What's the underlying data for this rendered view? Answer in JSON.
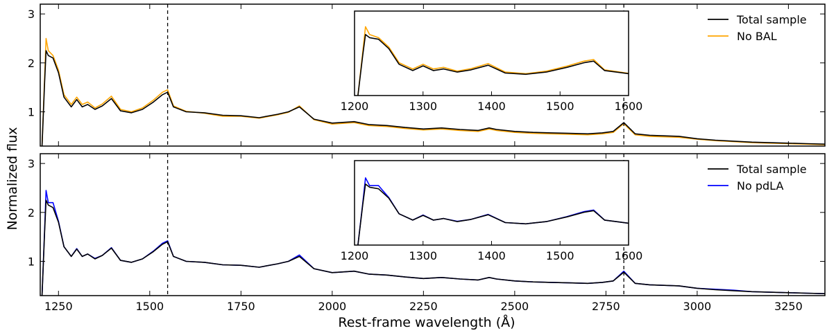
{
  "chart_data": {
    "type": "line",
    "xlabel": "Rest-frame wavelength (Å)",
    "ylabel": "Normalized flux",
    "xlim": [
      1200,
      3350
    ],
    "ylim": [
      0.3,
      3.2
    ],
    "xticks": [
      1250,
      1500,
      1750,
      2000,
      2250,
      2500,
      2750,
      3000,
      3250
    ],
    "yticks": [
      1,
      2,
      3
    ],
    "vlines": [
      1549,
      2799
    ],
    "inset": {
      "xlim": [
        1200,
        1600
      ],
      "xticks": [
        1200,
        1300,
        1400,
        1500,
        1600
      ]
    },
    "panels": [
      {
        "legend": [
          {
            "name": "Total sample",
            "color": "#000000"
          },
          {
            "name": "No BAL",
            "color": "#ffa500"
          }
        ],
        "series": [
          {
            "name": "Total sample",
            "color": "#000000",
            "x": [
              1205,
              1212,
              1216,
              1222,
              1235,
              1250,
              1265,
              1285,
              1300,
              1315,
              1330,
              1350,
              1370,
              1395,
              1420,
              1450,
              1480,
              1510,
              1535,
              1549,
              1565,
              1600,
              1650,
              1700,
              1750,
              1800,
              1850,
              1880,
              1910,
              1950,
              2000,
              2060,
              2100,
              2150,
              2200,
              2250,
              2300,
              2350,
              2400,
              2430,
              2450,
              2500,
              2550,
              2600,
              2650,
              2700,
              2740,
              2770,
              2799,
              2830,
              2870,
              2950,
              3000,
              3050,
              3100,
              3150,
              3200,
              3250,
              3300,
              3350
            ],
            "y": [
              0.3,
              1.6,
              2.25,
              2.15,
              2.1,
              1.8,
              1.3,
              1.1,
              1.25,
              1.1,
              1.15,
              1.05,
              1.12,
              1.27,
              1.02,
              0.98,
              1.05,
              1.2,
              1.35,
              1.4,
              1.1,
              1.0,
              0.98,
              0.93,
              0.92,
              0.88,
              0.95,
              1.0,
              1.1,
              0.85,
              0.77,
              0.8,
              0.74,
              0.72,
              0.68,
              0.65,
              0.67,
              0.64,
              0.62,
              0.67,
              0.64,
              0.6,
              0.58,
              0.57,
              0.56,
              0.55,
              0.57,
              0.6,
              0.78,
              0.55,
              0.52,
              0.5,
              0.45,
              0.42,
              0.4,
              0.38,
              0.37,
              0.36,
              0.35,
              0.34
            ]
          },
          {
            "name": "No BAL",
            "color": "#ffa500",
            "x": [
              1205,
              1212,
              1216,
              1222,
              1235,
              1250,
              1265,
              1285,
              1300,
              1315,
              1330,
              1350,
              1370,
              1395,
              1420,
              1450,
              1480,
              1510,
              1535,
              1549,
              1565,
              1600,
              1650,
              1700,
              1750,
              1800,
              1850,
              1880,
              1910,
              1950,
              2000,
              2060,
              2100,
              2150,
              2200,
              2250,
              2300,
              2350,
              2400,
              2430,
              2450,
              2500,
              2550,
              2600,
              2650,
              2700,
              2740,
              2770,
              2799,
              2830,
              2870,
              2950,
              3000,
              3050,
              3100,
              3150,
              3200,
              3250,
              3300,
              3350
            ],
            "y": [
              0.3,
              1.7,
              2.5,
              2.25,
              2.15,
              1.85,
              1.35,
              1.15,
              1.3,
              1.15,
              1.2,
              1.08,
              1.16,
              1.32,
              1.05,
              1.0,
              1.08,
              1.24,
              1.4,
              1.45,
              1.12,
              1.01,
              0.97,
              0.91,
              0.91,
              0.87,
              0.94,
              0.99,
              1.12,
              0.84,
              0.75,
              0.78,
              0.72,
              0.7,
              0.66,
              0.63,
              0.65,
              0.62,
              0.6,
              0.65,
              0.62,
              0.58,
              0.56,
              0.55,
              0.54,
              0.53,
              0.55,
              0.58,
              0.76,
              0.53,
              0.5,
              0.48,
              0.44,
              0.41,
              0.39,
              0.37,
              0.36,
              0.35,
              0.34,
              0.33
            ]
          }
        ]
      },
      {
        "legend": [
          {
            "name": "Total sample",
            "color": "#000000"
          },
          {
            "name": "No pdLA",
            "color": "#0000ff"
          }
        ],
        "series": [
          {
            "name": "Total sample",
            "color": "#000000",
            "x": [
              1205,
              1212,
              1216,
              1222,
              1235,
              1250,
              1265,
              1285,
              1300,
              1315,
              1330,
              1350,
              1370,
              1395,
              1420,
              1450,
              1480,
              1510,
              1535,
              1549,
              1565,
              1600,
              1650,
              1700,
              1750,
              1800,
              1850,
              1880,
              1910,
              1950,
              2000,
              2060,
              2100,
              2150,
              2200,
              2250,
              2300,
              2350,
              2400,
              2430,
              2450,
              2500,
              2550,
              2600,
              2650,
              2700,
              2740,
              2770,
              2799,
              2830,
              2870,
              2950,
              3000,
              3050,
              3100,
              3150,
              3200,
              3250,
              3300,
              3350
            ],
            "y": [
              0.3,
              1.6,
              2.25,
              2.15,
              2.1,
              1.8,
              1.3,
              1.1,
              1.25,
              1.1,
              1.15,
              1.05,
              1.12,
              1.27,
              1.02,
              0.98,
              1.05,
              1.2,
              1.35,
              1.4,
              1.1,
              1.0,
              0.98,
              0.93,
              0.92,
              0.88,
              0.95,
              1.0,
              1.1,
              0.85,
              0.77,
              0.8,
              0.74,
              0.72,
              0.68,
              0.65,
              0.67,
              0.64,
              0.62,
              0.67,
              0.64,
              0.6,
              0.58,
              0.57,
              0.56,
              0.55,
              0.57,
              0.6,
              0.78,
              0.55,
              0.52,
              0.5,
              0.45,
              0.42,
              0.4,
              0.38,
              0.37,
              0.36,
              0.35,
              0.34
            ]
          },
          {
            "name": "No pdLA",
            "color": "#0000ff",
            "x": [
              1205,
              1212,
              1216,
              1222,
              1235,
              1250,
              1265,
              1285,
              1300,
              1315,
              1330,
              1350,
              1370,
              1395,
              1420,
              1450,
              1480,
              1510,
              1535,
              1549,
              1565,
              1600,
              1650,
              1700,
              1750,
              1800,
              1850,
              1880,
              1910,
              1950,
              2000,
              2060,
              2100,
              2150,
              2200,
              2250,
              2300,
              2350,
              2400,
              2430,
              2450,
              2500,
              2550,
              2600,
              2650,
              2700,
              2740,
              2770,
              2799,
              2830,
              2870,
              2950,
              3000,
              3050,
              3100,
              3150,
              3200,
              3250,
              3300,
              3350
            ],
            "y": [
              0.3,
              1.65,
              2.45,
              2.2,
              2.2,
              1.82,
              1.3,
              1.1,
              1.26,
              1.1,
              1.15,
              1.06,
              1.12,
              1.28,
              1.02,
              0.98,
              1.05,
              1.21,
              1.37,
              1.42,
              1.1,
              1.0,
              0.98,
              0.93,
              0.92,
              0.88,
              0.95,
              1.0,
              1.13,
              0.85,
              0.77,
              0.8,
              0.74,
              0.72,
              0.68,
              0.65,
              0.67,
              0.64,
              0.62,
              0.67,
              0.64,
              0.6,
              0.58,
              0.57,
              0.56,
              0.55,
              0.57,
              0.6,
              0.8,
              0.55,
              0.52,
              0.5,
              0.45,
              0.43,
              0.41,
              0.38,
              0.37,
              0.36,
              0.35,
              0.34
            ]
          }
        ]
      }
    ]
  }
}
